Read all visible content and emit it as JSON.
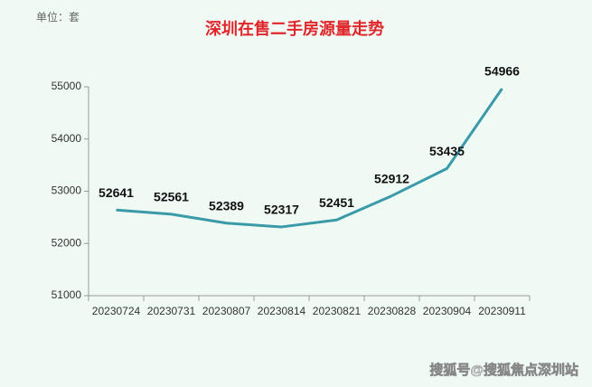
{
  "chart_data": {
    "type": "line",
    "title": "深圳在售二手房源量走势",
    "unit_label": "单位：套",
    "watermark": "搜狐号@搜狐焦点深圳站",
    "categories": [
      "20230724",
      "20230731",
      "20230807",
      "20230814",
      "20230821",
      "20230828",
      "20230904",
      "20230911"
    ],
    "values": [
      52641,
      52561,
      52389,
      52317,
      52451,
      52912,
      53435,
      54966
    ],
    "color": "#3a9aa8",
    "title_color": "#e0262a",
    "ylim": [
      51000,
      55000
    ],
    "yticks": [
      51000,
      52000,
      53000,
      54000,
      55000
    ],
    "grid": false
  }
}
